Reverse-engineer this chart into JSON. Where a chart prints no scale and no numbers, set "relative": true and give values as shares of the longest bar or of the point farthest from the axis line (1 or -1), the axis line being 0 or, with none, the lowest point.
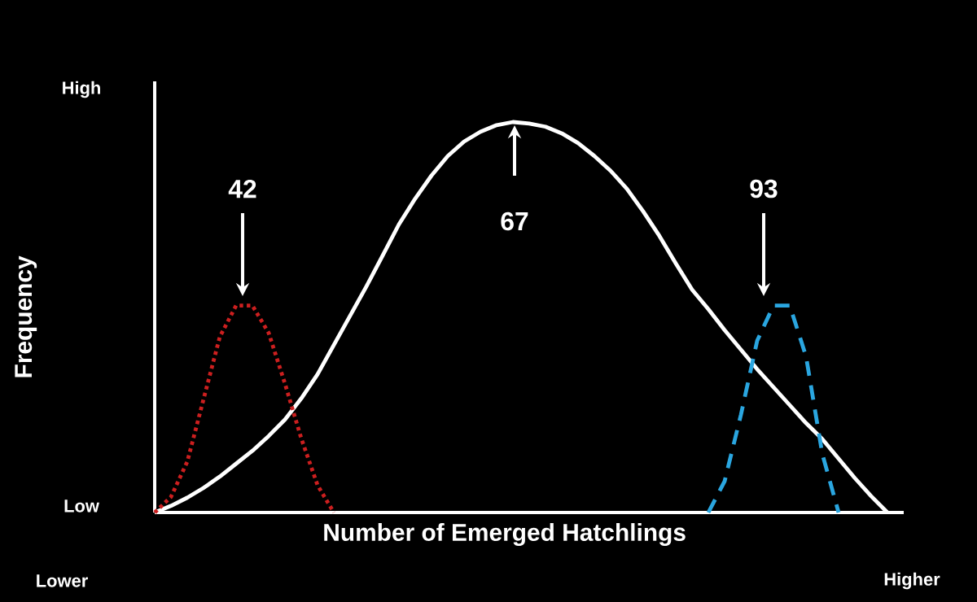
{
  "chart_data": {
    "type": "line",
    "relative": true,
    "xlabel": "Number of Emerged Hatchlings",
    "ylabel": "Frequency",
    "annotations": [
      "High",
      "Low",
      "Lower",
      "Higher",
      "42",
      "67",
      "93"
    ],
    "categories": [
      null,
      null,
      null,
      null,
      null,
      null,
      null,
      null,
      null,
      null,
      null,
      null,
      null,
      null,
      null,
      null,
      null,
      null,
      null,
      null,
      null,
      null,
      null,
      null,
      null,
      null,
      null,
      null,
      null,
      null,
      null,
      null,
      null,
      null,
      null,
      null,
      null,
      null,
      null,
      null,
      null,
      null,
      null,
      null,
      null,
      null
    ],
    "series": [
      {
        "color": "#ffffff",
        "line_style": "solid",
        "values": [
          0,
          0.017,
          0.038,
          0.063,
          0.092,
          0.125,
          0.158,
          0.196,
          0.238,
          0.292,
          0.354,
          0.429,
          0.504,
          0.579,
          0.658,
          0.738,
          0.804,
          0.863,
          0.913,
          0.95,
          0.975,
          0.992,
          1.0,
          0.996,
          0.988,
          0.971,
          0.946,
          0.913,
          0.875,
          0.829,
          0.771,
          0.708,
          0.638,
          0.571,
          0.521,
          0.467,
          0.417,
          0.367,
          0.321,
          0.275,
          0.229,
          0.188,
          0.138,
          0.088,
          0.042,
          0
        ]
      },
      {
        "color": "#cc1f1f",
        "line_style": "dotted",
        "values": [
          0,
          0.04,
          0.13,
          0.29,
          0.45,
          0.53,
          0.53,
          0.46,
          0.33,
          0.19,
          0.07,
          0,
          null,
          null,
          null,
          null,
          null,
          null,
          null,
          null,
          null,
          null,
          null,
          null,
          null,
          null,
          null,
          null,
          null,
          null,
          null,
          null,
          null,
          null,
          null,
          null,
          null,
          null,
          null,
          null,
          null,
          null,
          null,
          null,
          null,
          null
        ]
      },
      {
        "color": "#2aa6e0",
        "line_style": "dashed",
        "values": [
          null,
          null,
          null,
          null,
          null,
          null,
          null,
          null,
          null,
          null,
          null,
          null,
          null,
          null,
          null,
          null,
          null,
          null,
          null,
          null,
          null,
          null,
          null,
          null,
          null,
          null,
          null,
          null,
          null,
          null,
          null,
          null,
          null,
          null,
          0,
          0.08,
          0.25,
          0.44,
          0.53,
          0.53,
          0.4,
          0.15,
          0,
          null,
          null,
          null
        ]
      }
    ]
  }
}
